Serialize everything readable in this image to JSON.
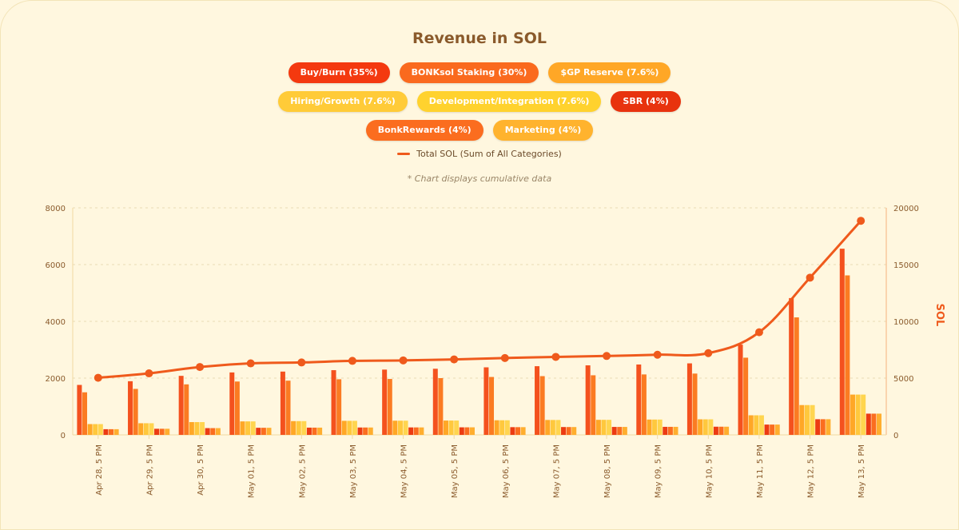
{
  "chart_data": {
    "type": "bar",
    "title": "Revenue in SOL",
    "note": "* Chart displays cumulative data",
    "categories": [
      "Apr 28, 5 PM",
      "Apr 29, 5 PM",
      "Apr 30, 5 PM",
      "May 01, 5 PM",
      "May 02, 5 PM",
      "May 03, 5 PM",
      "May 04, 5 PM",
      "May 05, 5 PM",
      "May 06, 5 PM",
      "May 07, 5 PM",
      "May 08, 5 PM",
      "May 09, 5 PM",
      "May 10, 5 PM",
      "May 11, 5 PM",
      "May 12, 5 PM",
      "May 13, 5 PM"
    ],
    "ylim": [
      0,
      8000
    ],
    "y_ticks": [
      0,
      2000,
      4000,
      6000,
      8000
    ],
    "y2lim": [
      0,
      20000
    ],
    "y2_ticks": [
      0,
      5000,
      10000,
      15000,
      20000
    ],
    "y2label": "SOL",
    "grid": "horizontal dashed",
    "legend_position": "top",
    "series": [
      {
        "name": "Buy/Burn (35%)",
        "color": "#f4511e",
        "values": [
          1760,
          1890,
          2080,
          2200,
          2230,
          2280,
          2300,
          2330,
          2380,
          2420,
          2450,
          2480,
          2520,
          3180,
          4820,
          6560
        ]
      },
      {
        "name": "BONKsol Staking (30%)",
        "color": "#fb7b22",
        "values": [
          1500,
          1620,
          1780,
          1880,
          1910,
          1960,
          1970,
          2000,
          2040,
          2070,
          2100,
          2130,
          2160,
          2720,
          4140,
          5620
        ]
      },
      {
        "name": "$GP Reserve (7.6%)",
        "color": "#ffa726",
        "values": [
          380,
          410,
          450,
          475,
          485,
          495,
          500,
          505,
          515,
          525,
          530,
          540,
          548,
          690,
          1050,
          1420
        ]
      },
      {
        "name": "Hiring/Growth (7.6%)",
        "color": "#ffc83d",
        "values": [
          380,
          410,
          450,
          475,
          485,
          495,
          500,
          505,
          515,
          525,
          530,
          540,
          548,
          690,
          1050,
          1420
        ]
      },
      {
        "name": "Development/Integration (7.6%)",
        "color": "#ffd54f",
        "values": [
          380,
          410,
          450,
          475,
          485,
          495,
          500,
          505,
          515,
          525,
          530,
          540,
          548,
          690,
          1050,
          1420
        ]
      },
      {
        "name": "SBR (4%)",
        "color": "#ec3b12",
        "values": [
          200,
          215,
          238,
          250,
          255,
          260,
          263,
          266,
          272,
          276,
          280,
          283,
          288,
          363,
          552,
          748
        ]
      },
      {
        "name": "BonkRewards (4%)",
        "color": "#fb6d1f",
        "values": [
          200,
          215,
          238,
          250,
          255,
          260,
          263,
          266,
          272,
          276,
          280,
          283,
          288,
          363,
          552,
          748
        ]
      },
      {
        "name": "Marketing (4%)",
        "color": "#ffae2e",
        "values": [
          200,
          215,
          238,
          250,
          255,
          260,
          263,
          266,
          272,
          276,
          280,
          283,
          288,
          363,
          552,
          748
        ]
      }
    ],
    "line_series": {
      "name": "Total SOL (Sum of All Categories)",
      "color": "#ef5a1c",
      "axis": "right",
      "values": [
        5030,
        5420,
        5980,
        6300,
        6380,
        6520,
        6560,
        6650,
        6770,
        6870,
        6950,
        7060,
        7200,
        9040,
        13850,
        18860
      ]
    }
  },
  "legend_rows": [
    [
      {
        "label": "Buy/Burn (35%)",
        "color": "#f4390f"
      },
      {
        "label": "BONKsol Staking (30%)",
        "color": "#fa6a1e"
      },
      {
        "label": "$GP Reserve (7.6%)",
        "color": "#ffa726"
      }
    ],
    [
      {
        "label": "Hiring/Growth (7.6%)",
        "color": "#ffcb38"
      },
      {
        "label": "Development/Integration (7.6%)",
        "color": "#ffd22e"
      },
      {
        "label": "SBR (4%)",
        "color": "#e8330e"
      }
    ],
    [
      {
        "label": "BonkRewards (4%)",
        "color": "#fb6d1f"
      },
      {
        "label": "Marketing (4%)",
        "color": "#ffb32e"
      }
    ]
  ]
}
